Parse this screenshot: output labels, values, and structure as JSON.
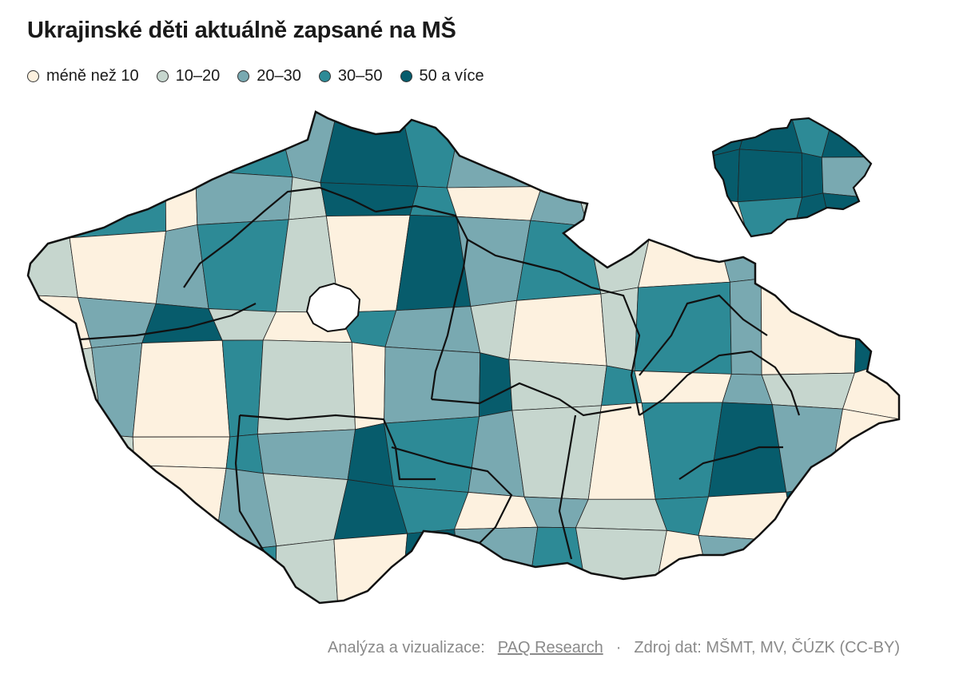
{
  "title": "Ukrajinské děti aktuálně zapsané na MŠ",
  "legend": [
    {
      "label": "méně než 10",
      "color": "#fdf1df"
    },
    {
      "label": "10–20",
      "color": "#c6d6ce"
    },
    {
      "label": "20–30",
      "color": "#79a9b1"
    },
    {
      "label": "30–50",
      "color": "#2d8a96"
    },
    {
      "label": "50 a více",
      "color": "#075c6c"
    }
  ],
  "footer": {
    "credit_prefix": "Analýza a vizualizace:",
    "credit_link": "PAQ Research",
    "separator": "·",
    "source": "Zdroj dat: MŠMT, MV, ČÚZK (CC-BY)"
  },
  "map": {
    "country": "Czech Republic",
    "inset": "Praha",
    "district_categories": [
      2,
      1,
      0,
      3,
      2,
      4,
      3,
      2,
      1,
      0,
      3,
      4,
      2,
      0,
      1,
      3,
      0,
      2,
      1,
      4,
      3,
      0,
      2,
      1,
      3,
      0,
      4,
      2,
      1,
      0,
      2,
      3,
      1,
      0,
      4,
      2,
      3,
      1,
      0,
      2,
      1,
      3,
      0,
      2,
      4,
      1,
      0,
      3,
      2,
      1,
      0,
      1,
      3,
      2,
      0,
      4,
      1,
      2,
      0,
      3,
      1,
      0,
      2,
      4,
      1,
      3,
      0,
      2,
      1,
      0
    ],
    "prague_categories": [
      4,
      4,
      3,
      4,
      4,
      4,
      4,
      2,
      0,
      3,
      4,
      4
    ]
  }
}
